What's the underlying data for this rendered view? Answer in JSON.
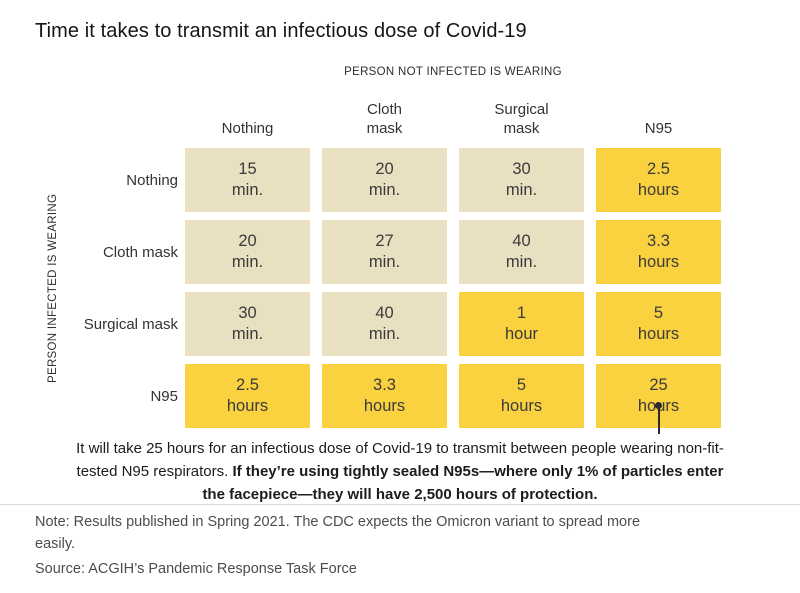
{
  "title": "Time it takes to transmit an infectious dose of Covid-19",
  "colors": {
    "cell_base": "#e9dfc1",
    "cell_highlight": "#fad13f",
    "cell_text": "#3b3b3b",
    "background": "#ffffff"
  },
  "grid": {
    "top_axis_label": "PERSON NOT INFECTED IS WEARING",
    "left_axis_label": "PERSON INFECTED IS WEARING",
    "col_headers": [
      "Nothing",
      "Cloth\nmask",
      "Surgical\nmask",
      "N95"
    ],
    "row_headers": [
      "Nothing",
      "Cloth mask",
      "Surgical mask",
      "N95"
    ],
    "cells": [
      [
        {
          "value": "15",
          "unit": "min.",
          "highlight": false
        },
        {
          "value": "20",
          "unit": "min.",
          "highlight": false
        },
        {
          "value": "30",
          "unit": "min.",
          "highlight": false
        },
        {
          "value": "2.5",
          "unit": "hours",
          "highlight": true
        }
      ],
      [
        {
          "value": "20",
          "unit": "min.",
          "highlight": false
        },
        {
          "value": "27",
          "unit": "min.",
          "highlight": false
        },
        {
          "value": "40",
          "unit": "min.",
          "highlight": false
        },
        {
          "value": "3.3",
          "unit": "hours",
          "highlight": true
        }
      ],
      [
        {
          "value": "30",
          "unit": "min.",
          "highlight": false
        },
        {
          "value": "40",
          "unit": "min.",
          "highlight": false
        },
        {
          "value": "1",
          "unit": "hour",
          "highlight": true
        },
        {
          "value": "5",
          "unit": "hours",
          "highlight": true
        }
      ],
      [
        {
          "value": "2.5",
          "unit": "hours",
          "highlight": true
        },
        {
          "value": "3.3",
          "unit": "hours",
          "highlight": true
        },
        {
          "value": "5",
          "unit": "hours",
          "highlight": true
        },
        {
          "value": "25",
          "unit": "hours",
          "highlight": true
        }
      ]
    ]
  },
  "annotation": {
    "normal": "It will take 25 hours for an infectious dose of Covid-19 to transmit between people wearing non-fit-tested N95 respirators. ",
    "bold": "If they’re using tightly sealed N95s—where only 1% of particles enter the facepiece—they will have 2,500 hours of protection."
  },
  "footer": {
    "note": "Note: Results published in Spring 2021. The CDC expects the Omicron variant to spread more easily.",
    "source": "Source: ACGIH’s Pandemic Response Task Force"
  },
  "chart_data": {
    "type": "heatmap",
    "title": "Time it takes to transmit an infectious dose of Covid-19",
    "x_axis_label": "PERSON NOT INFECTED IS WEARING",
    "y_axis_label": "PERSON INFECTED IS WEARING",
    "columns": [
      "Nothing",
      "Cloth mask",
      "Surgical mask",
      "N95"
    ],
    "rows": [
      "Nothing",
      "Cloth mask",
      "Surgical mask",
      "N95"
    ],
    "values_display": [
      [
        "15 min.",
        "20 min.",
        "30 min.",
        "2.5 hours"
      ],
      [
        "20 min.",
        "27 min.",
        "40 min.",
        "3.3 hours"
      ],
      [
        "30 min.",
        "40 min.",
        "1 hour",
        "5 hours"
      ],
      [
        "2.5 hours",
        "3.3 hours",
        "5 hours",
        "25 hours"
      ]
    ],
    "values_minutes": [
      [
        15,
        20,
        30,
        150
      ],
      [
        20,
        27,
        40,
        198
      ],
      [
        30,
        40,
        60,
        300
      ],
      [
        150,
        198,
        300,
        1500
      ]
    ],
    "highlight_rule": "cells with duration of 1 hour or more are shown in yellow (#fad13f); shorter durations in beige (#e9dfc1)",
    "annotation_target_cell": {
      "row": "N95",
      "column": "N95",
      "value": "25 hours"
    },
    "legend_position": "none",
    "grid": "off"
  }
}
